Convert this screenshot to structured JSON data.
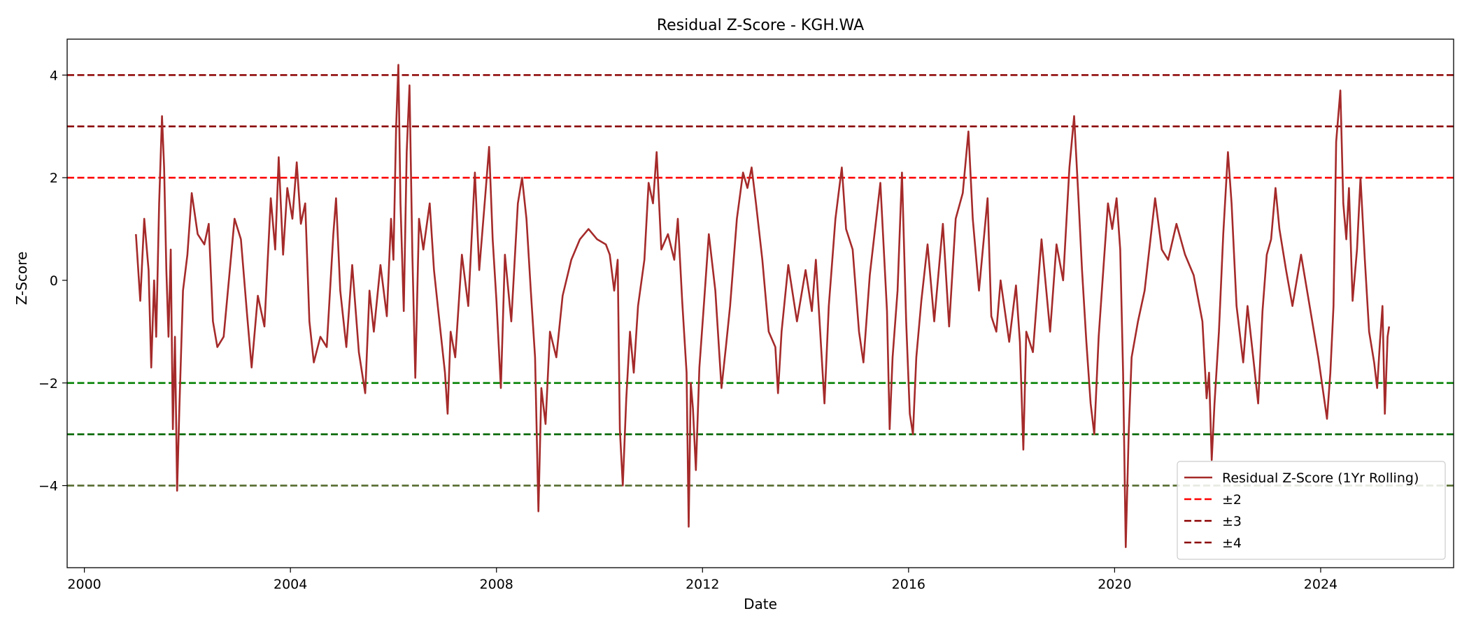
{
  "chart_data": {
    "type": "line",
    "title": "Residual Z-Score - KGH.WA",
    "xlabel": "Date",
    "ylabel": "Z-Score",
    "xlim": [
      "1999-09-01",
      "2026-08-01"
    ],
    "ylim": [
      -5.6,
      4.7
    ],
    "x_ticks": [
      "2000",
      "2004",
      "2008",
      "2012",
      "2016",
      "2020",
      "2024"
    ],
    "y_ticks": [
      {
        "value": 4,
        "label": "4"
      },
      {
        "value": 2,
        "label": "2"
      },
      {
        "value": 0,
        "label": "0"
      },
      {
        "value": -2,
        "label": "−2"
      },
      {
        "value": -4,
        "label": "−4"
      }
    ],
    "grid": false,
    "legend_position": "lower right",
    "series": [
      {
        "name": "Residual Z-Score (1Yr Rolling)",
        "color": "#a52a2a",
        "points": [
          [
            "2001-01-01",
            0.9
          ],
          [
            "2001-02-01",
            -0.4
          ],
          [
            "2001-03-01",
            1.2
          ],
          [
            "2001-04-01",
            0.2
          ],
          [
            "2001-04-20",
            -1.7
          ],
          [
            "2001-05-10",
            0.0
          ],
          [
            "2001-05-25",
            -1.1
          ],
          [
            "2001-06-15",
            1.5
          ],
          [
            "2001-07-05",
            3.2
          ],
          [
            "2001-07-20",
            2.2
          ],
          [
            "2001-08-05",
            0.2
          ],
          [
            "2001-08-20",
            -1.1
          ],
          [
            "2001-09-05",
            0.6
          ],
          [
            "2001-09-20",
            -2.9
          ],
          [
            "2001-10-05",
            -1.1
          ],
          [
            "2001-10-20",
            -4.1
          ],
          [
            "2001-11-05",
            -2.5
          ],
          [
            "2001-12-01",
            -0.2
          ],
          [
            "2002-01-01",
            0.5
          ],
          [
            "2002-02-01",
            1.7
          ],
          [
            "2002-03-15",
            0.9
          ],
          [
            "2002-05-01",
            0.7
          ],
          [
            "2002-06-01",
            1.1
          ],
          [
            "2002-07-01",
            -0.8
          ],
          [
            "2002-08-01",
            -1.3
          ],
          [
            "2002-09-15",
            -1.1
          ],
          [
            "2002-11-01",
            0.3
          ],
          [
            "2002-12-01",
            1.2
          ],
          [
            "2003-01-15",
            0.8
          ],
          [
            "2003-03-01",
            -0.7
          ],
          [
            "2003-04-01",
            -1.7
          ],
          [
            "2003-05-15",
            -0.3
          ],
          [
            "2003-07-01",
            -0.9
          ],
          [
            "2003-08-15",
            1.6
          ],
          [
            "2003-09-15",
            0.6
          ],
          [
            "2003-10-10",
            2.4
          ],
          [
            "2003-11-10",
            0.5
          ],
          [
            "2003-12-10",
            1.8
          ],
          [
            "2004-01-15",
            1.2
          ],
          [
            "2004-02-15",
            2.3
          ],
          [
            "2004-03-15",
            1.1
          ],
          [
            "2004-04-15",
            1.5
          ],
          [
            "2004-05-15",
            -0.8
          ],
          [
            "2004-06-15",
            -1.6
          ],
          [
            "2004-08-01",
            -1.1
          ],
          [
            "2004-09-15",
            -1.3
          ],
          [
            "2004-11-01",
            0.9
          ],
          [
            "2004-11-20",
            1.6
          ],
          [
            "2004-12-20",
            -0.2
          ],
          [
            "2005-02-01",
            -1.3
          ],
          [
            "2005-03-15",
            0.3
          ],
          [
            "2005-05-01",
            -1.4
          ],
          [
            "2005-06-15",
            -2.2
          ],
          [
            "2005-07-15",
            -0.2
          ],
          [
            "2005-08-15",
            -1.0
          ],
          [
            "2005-10-01",
            0.3
          ],
          [
            "2005-11-15",
            -0.7
          ],
          [
            "2005-12-15",
            1.2
          ],
          [
            "2006-01-01",
            0.4
          ],
          [
            "2006-01-20",
            3.0
          ],
          [
            "2006-02-05",
            4.2
          ],
          [
            "2006-02-20",
            1.5
          ],
          [
            "2006-03-15",
            -0.6
          ],
          [
            "2006-04-05",
            2.5
          ],
          [
            "2006-04-25",
            3.8
          ],
          [
            "2006-05-15",
            0.5
          ],
          [
            "2006-06-05",
            -1.9
          ],
          [
            "2006-07-01",
            1.2
          ],
          [
            "2006-08-01",
            0.6
          ],
          [
            "2006-09-15",
            1.5
          ],
          [
            "2006-10-15",
            0.2
          ],
          [
            "2006-11-15",
            -0.6
          ],
          [
            "2007-01-01",
            -1.8
          ],
          [
            "2007-01-20",
            -2.6
          ],
          [
            "2007-02-10",
            -1.0
          ],
          [
            "2007-03-15",
            -1.5
          ],
          [
            "2007-05-01",
            0.5
          ],
          [
            "2007-06-15",
            -0.5
          ],
          [
            "2007-08-01",
            2.1
          ],
          [
            "2007-09-01",
            0.2
          ],
          [
            "2007-10-15",
            1.7
          ],
          [
            "2007-11-10",
            2.6
          ],
          [
            "2007-12-05",
            0.8
          ],
          [
            "2008-01-01",
            -0.4
          ],
          [
            "2008-02-01",
            -2.1
          ],
          [
            "2008-03-01",
            0.5
          ],
          [
            "2008-04-15",
            -0.8
          ],
          [
            "2008-06-01",
            1.5
          ],
          [
            "2008-07-01",
            2.0
          ],
          [
            "2008-08-01",
            1.2
          ],
          [
            "2008-09-01",
            -0.2
          ],
          [
            "2008-10-01",
            -1.5
          ],
          [
            "2008-10-25",
            -4.5
          ],
          [
            "2008-11-15",
            -2.1
          ],
          [
            "2008-12-15",
            -2.8
          ],
          [
            "2009-01-15",
            -1.0
          ],
          [
            "2009-03-01",
            -1.5
          ],
          [
            "2009-04-15",
            -0.3
          ],
          [
            "2009-06-15",
            0.4
          ],
          [
            "2009-08-15",
            0.8
          ],
          [
            "2009-10-15",
            1.0
          ],
          [
            "2009-12-15",
            0.8
          ],
          [
            "2010-02-15",
            0.7
          ],
          [
            "2010-03-15",
            0.5
          ],
          [
            "2010-04-15",
            -0.2
          ],
          [
            "2010-05-10",
            0.4
          ],
          [
            "2010-05-25",
            -2.9
          ],
          [
            "2010-06-15",
            -4.0
          ],
          [
            "2010-07-10",
            -2.3
          ],
          [
            "2010-08-05",
            -1.0
          ],
          [
            "2010-09-01",
            -1.8
          ],
          [
            "2010-10-01",
            -0.5
          ],
          [
            "2010-11-15",
            0.4
          ],
          [
            "2010-12-15",
            1.9
          ],
          [
            "2011-01-15",
            1.5
          ],
          [
            "2011-02-10",
            2.5
          ],
          [
            "2011-03-15",
            0.6
          ],
          [
            "2011-05-01",
            0.9
          ],
          [
            "2011-06-15",
            0.4
          ],
          [
            "2011-07-10",
            1.2
          ],
          [
            "2011-08-10",
            -0.4
          ],
          [
            "2011-09-10",
            -1.8
          ],
          [
            "2011-09-25",
            -4.8
          ],
          [
            "2011-10-10",
            -2.0
          ],
          [
            "2011-10-25",
            -2.5
          ],
          [
            "2011-11-15",
            -3.7
          ],
          [
            "2011-12-10",
            -1.7
          ],
          [
            "2012-01-10",
            -0.5
          ],
          [
            "2012-02-15",
            0.9
          ],
          [
            "2012-04-01",
            -0.2
          ],
          [
            "2012-05-15",
            -2.1
          ],
          [
            "2012-06-15",
            -1.3
          ],
          [
            "2012-07-15",
            -0.5
          ],
          [
            "2012-09-01",
            1.2
          ],
          [
            "2012-10-15",
            2.1
          ],
          [
            "2012-11-15",
            1.8
          ],
          [
            "2012-12-15",
            2.2
          ],
          [
            "2013-01-15",
            1.5
          ],
          [
            "2013-03-01",
            0.4
          ],
          [
            "2013-04-15",
            -1.0
          ],
          [
            "2013-06-01",
            -1.3
          ],
          [
            "2013-06-20",
            -2.2
          ],
          [
            "2013-07-15",
            -1.0
          ],
          [
            "2013-09-01",
            0.3
          ],
          [
            "2013-11-01",
            -0.8
          ],
          [
            "2014-01-01",
            0.2
          ],
          [
            "2014-02-15",
            -0.6
          ],
          [
            "2014-03-15",
            0.4
          ],
          [
            "2014-04-15",
            -1.0
          ],
          [
            "2014-05-15",
            -2.4
          ],
          [
            "2014-06-15",
            -0.5
          ],
          [
            "2014-08-01",
            1.2
          ],
          [
            "2014-09-15",
            2.2
          ],
          [
            "2014-10-15",
            1.0
          ],
          [
            "2014-12-01",
            0.6
          ],
          [
            "2015-01-15",
            -1.0
          ],
          [
            "2015-02-15",
            -1.6
          ],
          [
            "2015-04-01",
            0.1
          ],
          [
            "2015-06-15",
            1.9
          ],
          [
            "2015-08-01",
            -0.6
          ],
          [
            "2015-08-20",
            -2.9
          ],
          [
            "2015-09-10",
            -1.5
          ],
          [
            "2015-10-15",
            -0.2
          ],
          [
            "2015-11-15",
            2.1
          ],
          [
            "2015-12-15",
            -0.8
          ],
          [
            "2016-01-10",
            -2.6
          ],
          [
            "2016-02-01",
            -3.0
          ],
          [
            "2016-02-25",
            -1.5
          ],
          [
            "2016-04-01",
            -0.4
          ],
          [
            "2016-05-15",
            0.7
          ],
          [
            "2016-07-01",
            -0.8
          ],
          [
            "2016-09-01",
            1.1
          ],
          [
            "2016-10-15",
            -0.9
          ],
          [
            "2016-12-01",
            1.2
          ],
          [
            "2017-01-20",
            1.7
          ],
          [
            "2017-03-01",
            2.9
          ],
          [
            "2017-04-01",
            1.2
          ],
          [
            "2017-05-15",
            -0.2
          ],
          [
            "2017-07-15",
            1.6
          ],
          [
            "2017-08-10",
            -0.7
          ],
          [
            "2017-09-15",
            -1.0
          ],
          [
            "2017-10-15",
            0.0
          ],
          [
            "2017-12-15",
            -1.2
          ],
          [
            "2018-02-01",
            -0.1
          ],
          [
            "2018-03-01",
            -1.2
          ],
          [
            "2018-03-25",
            -3.3
          ],
          [
            "2018-04-15",
            -1.0
          ],
          [
            "2018-06-01",
            -1.4
          ],
          [
            "2018-08-01",
            0.8
          ],
          [
            "2018-10-01",
            -1.0
          ],
          [
            "2018-11-15",
            0.7
          ],
          [
            "2019-01-01",
            0.0
          ],
          [
            "2019-02-15",
            2.2
          ],
          [
            "2019-03-20",
            3.2
          ],
          [
            "2019-04-20",
            1.6
          ],
          [
            "2019-05-15",
            0.2
          ],
          [
            "2019-06-15",
            -1.2
          ],
          [
            "2019-07-15",
            -2.4
          ],
          [
            "2019-08-10",
            -3.0
          ],
          [
            "2019-09-10",
            -1.1
          ],
          [
            "2019-10-15",
            0.3
          ],
          [
            "2019-11-15",
            1.5
          ],
          [
            "2019-12-15",
            1.0
          ],
          [
            "2020-01-15",
            1.6
          ],
          [
            "2020-02-10",
            0.6
          ],
          [
            "2020-03-01",
            -1.8
          ],
          [
            "2020-03-20",
            -5.2
          ],
          [
            "2020-04-10",
            -3.0
          ],
          [
            "2020-05-01",
            -1.5
          ],
          [
            "2020-06-15",
            -0.8
          ],
          [
            "2020-08-01",
            -0.2
          ],
          [
            "2020-10-15",
            1.6
          ],
          [
            "2020-12-01",
            0.6
          ],
          [
            "2021-01-15",
            0.4
          ],
          [
            "2021-03-15",
            1.1
          ],
          [
            "2021-05-15",
            0.5
          ],
          [
            "2021-07-15",
            0.1
          ],
          [
            "2021-09-15",
            -0.8
          ],
          [
            "2021-10-15",
            -2.3
          ],
          [
            "2021-11-01",
            -1.8
          ],
          [
            "2021-11-20",
            -3.5
          ],
          [
            "2021-12-10",
            -2.4
          ],
          [
            "2022-01-10",
            -1.0
          ],
          [
            "2022-02-10",
            0.9
          ],
          [
            "2022-03-15",
            2.5
          ],
          [
            "2022-04-10",
            1.5
          ],
          [
            "2022-05-15",
            -0.5
          ],
          [
            "2022-07-01",
            -1.6
          ],
          [
            "2022-08-01",
            -0.5
          ],
          [
            "2022-09-10",
            -1.5
          ],
          [
            "2022-10-15",
            -2.4
          ],
          [
            "2022-11-15",
            -0.6
          ],
          [
            "2022-12-15",
            0.5
          ],
          [
            "2023-01-15",
            0.8
          ],
          [
            "2023-02-15",
            1.8
          ],
          [
            "2023-03-15",
            1.0
          ],
          [
            "2023-05-01",
            0.2
          ],
          [
            "2023-06-15",
            -0.5
          ],
          [
            "2023-08-15",
            0.5
          ],
          [
            "2023-10-15",
            -0.5
          ],
          [
            "2023-12-15",
            -1.5
          ],
          [
            "2024-02-15",
            -2.7
          ],
          [
            "2024-03-10",
            -1.8
          ],
          [
            "2024-04-01",
            -0.5
          ],
          [
            "2024-04-20",
            2.7
          ],
          [
            "2024-05-20",
            3.7
          ],
          [
            "2024-06-10",
            1.5
          ],
          [
            "2024-07-01",
            0.8
          ],
          [
            "2024-07-20",
            1.8
          ],
          [
            "2024-08-15",
            -0.4
          ],
          [
            "2024-09-15",
            0.6
          ],
          [
            "2024-10-10",
            2.0
          ],
          [
            "2024-11-10",
            0.4
          ],
          [
            "2024-12-10",
            -1.0
          ],
          [
            "2025-01-15",
            -1.6
          ],
          [
            "2025-02-05",
            -2.1
          ],
          [
            "2025-02-25",
            -1.2
          ],
          [
            "2025-03-15",
            -0.5
          ],
          [
            "2025-04-01",
            -2.6
          ],
          [
            "2025-04-20",
            -1.1
          ],
          [
            "2025-05-01",
            -0.9
          ]
        ]
      }
    ],
    "thresholds": [
      {
        "value": 2,
        "color": "#ff0000"
      },
      {
        "value": -2,
        "color": "#008000"
      },
      {
        "value": 3,
        "color": "#8b0000"
      },
      {
        "value": -3,
        "color": "#006400"
      },
      {
        "value": 4,
        "color": "#8b0000"
      },
      {
        "value": -4,
        "color": "#556b2f"
      }
    ],
    "legend": [
      {
        "label": "Residual Z-Score (1Yr Rolling)",
        "color": "#a52a2a",
        "style": "solid"
      },
      {
        "label": "±2",
        "color": "#ff0000",
        "style": "dashed"
      },
      {
        "label": "±3",
        "color": "#8b0000",
        "style": "dashed"
      },
      {
        "label": "±4",
        "color": "#8b0000",
        "style": "dashed"
      }
    ]
  }
}
